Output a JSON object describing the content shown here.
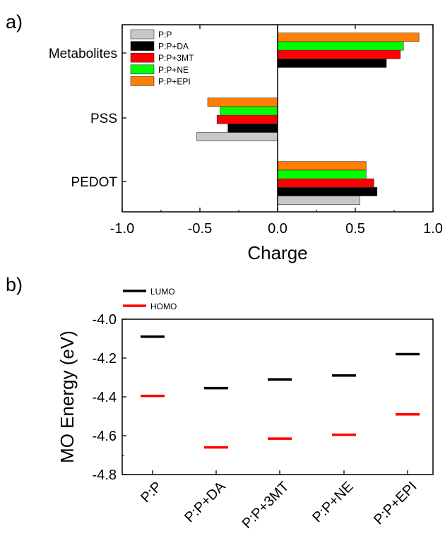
{
  "chart_data": [
    {
      "panel_label": "a)",
      "type": "bar",
      "orientation": "horizontal",
      "categories": [
        "PEDOT",
        "PSS",
        "Metabolites"
      ],
      "series": [
        {
          "name": "P:P",
          "color": "#c8c8c8",
          "values": [
            0.53,
            -0.52,
            null
          ]
        },
        {
          "name": "P:P+DA",
          "color": "#000000",
          "values": [
            0.64,
            -0.32,
            0.7
          ]
        },
        {
          "name": "P:P+3MT",
          "color": "#ff0000",
          "values": [
            0.62,
            -0.39,
            0.79
          ]
        },
        {
          "name": "P:P+NE",
          "color": "#00ff00",
          "values": [
            0.57,
            -0.37,
            0.81
          ]
        },
        {
          "name": "P:P+EPI",
          "color": "#ff8000",
          "values": [
            0.57,
            -0.45,
            0.91
          ]
        }
      ],
      "xlabel": "Charge",
      "ylabel": "",
      "xlim": [
        -1.0,
        1.0
      ],
      "xticks": [
        "-1.0",
        "-0.5",
        "0.0",
        "0.5",
        "1.0"
      ],
      "zero_line": true,
      "grid": false,
      "legend_position": "top-left"
    },
    {
      "panel_label": "b)",
      "type": "scatter",
      "marker": "horizontal-dash",
      "categories": [
        "P:P",
        "P:P+DA",
        "P:P+3MT",
        "P:P+NE",
        "P:P+EPI"
      ],
      "series": [
        {
          "name": "LUMO",
          "color": "#000000",
          "values": [
            -4.09,
            -4.355,
            -4.31,
            -4.29,
            -4.18
          ]
        },
        {
          "name": "HOMO",
          "color": "#ff0000",
          "values": [
            -4.395,
            -4.66,
            -4.615,
            -4.595,
            -4.49
          ]
        }
      ],
      "xlabel": "",
      "ylabel": "MO Energy (eV)",
      "ylim": [
        -4.8,
        -4.0
      ],
      "yticks": [
        "-4.0",
        "-4.2",
        "-4.4",
        "-4.6",
        "-4.8"
      ],
      "grid": false,
      "legend_position": "above-top-left"
    }
  ]
}
